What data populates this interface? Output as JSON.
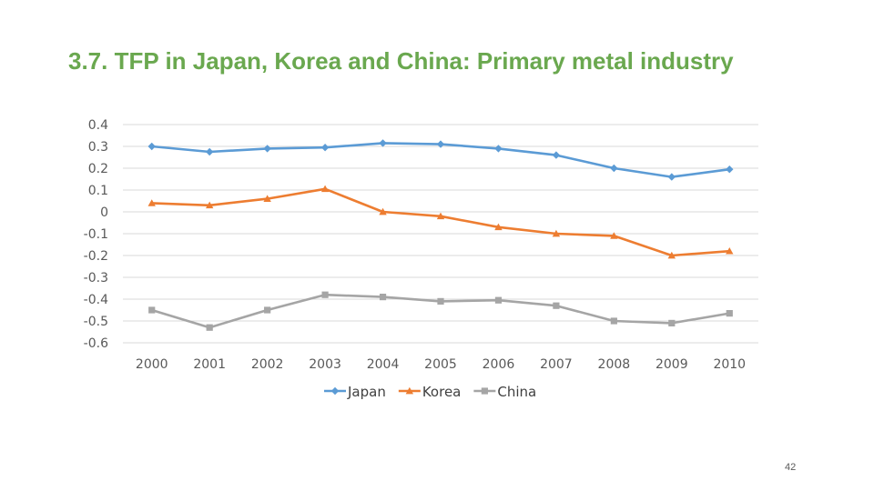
{
  "slide": {
    "title": "3.7. TFP in Japan, Korea and China: Primary metal industry",
    "page_number": "42"
  },
  "colors": {
    "title": "#6aa84f",
    "Japan": "#5b9bd5",
    "Korea": "#ed7d31",
    "China": "#a5a5a5",
    "grid": "#d9d9d9"
  },
  "chart_data": {
    "type": "line",
    "x": [
      "2000",
      "2001",
      "2002",
      "2003",
      "2004",
      "2005",
      "2006",
      "2007",
      "2008",
      "2009",
      "2010"
    ],
    "y_ticks": [
      "0.4",
      "0.3",
      "0.2",
      "0.1",
      "0",
      "-0.1",
      "-0.2",
      "-0.3",
      "-0.4",
      "-0.5",
      "-0.6"
    ],
    "ylim": [
      -0.6,
      0.4
    ],
    "grid": true,
    "legend_position": "bottom",
    "series": [
      {
        "name": "Japan",
        "marker": "diamond",
        "values": [
          0.3,
          0.275,
          0.29,
          0.295,
          0.315,
          0.31,
          0.29,
          0.26,
          0.2,
          0.16,
          0.195
        ]
      },
      {
        "name": "Korea",
        "marker": "triangle",
        "values": [
          0.04,
          0.03,
          0.06,
          0.105,
          0.0,
          -0.02,
          -0.07,
          -0.1,
          -0.11,
          -0.2,
          -0.18
        ]
      },
      {
        "name": "China",
        "marker": "square",
        "values": [
          -0.45,
          -0.53,
          -0.45,
          -0.38,
          -0.39,
          -0.41,
          -0.405,
          -0.43,
          -0.5,
          -0.51,
          -0.465
        ]
      }
    ]
  }
}
